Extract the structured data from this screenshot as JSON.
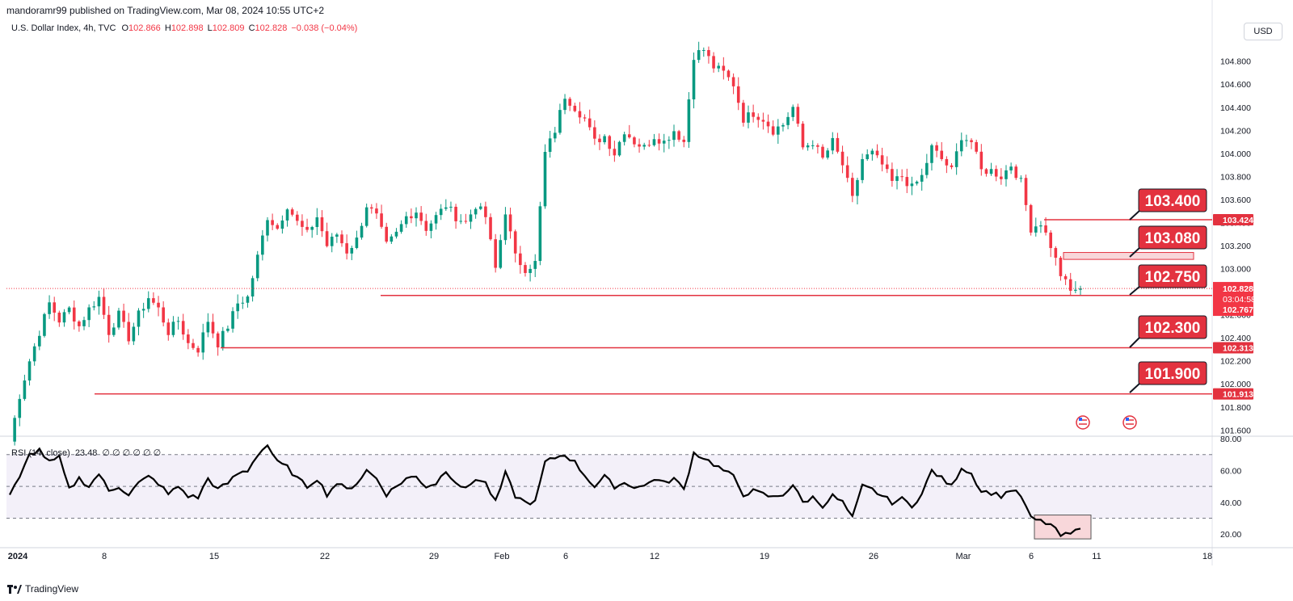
{
  "header": {
    "publish_text": "mandoramr99 published on TradingView.com, Mar 08, 2024 10:55 UTC+2"
  },
  "legend": {
    "symbol": "U.S. Dollar Index, 4h, TVC",
    "open_label": "O",
    "open": "102.866",
    "high_label": "H",
    "high": "102.898",
    "low_label": "L",
    "low": "102.809",
    "close_label": "C",
    "close": "102.828",
    "change": "−0.038 (−0.04%)"
  },
  "currency_button": "USD",
  "rsi_legend": {
    "title": "RSI (14, close)",
    "value": "23.48",
    "placeholders": "∅ ∅ ∅ ∅ ∅ ∅"
  },
  "brand": "TradingView",
  "colors": {
    "up": "#089981",
    "down": "#f23645",
    "level": "#e3323f",
    "rsi_line": "#000000",
    "rsi_band": "#7e57c2"
  },
  "axis_tags": {
    "current_price": "102.828",
    "countdown": "03:04:58",
    "price_low": "102.767"
  },
  "chart_data": [
    {
      "type": "candlestick",
      "title": "U.S. Dollar Index, 4h, TVC",
      "x_ticks": [
        "2024",
        "8",
        "15",
        "22",
        "29",
        "Feb",
        "6",
        "12",
        "19",
        "26",
        "Mar",
        "6",
        "11",
        "18"
      ],
      "y_ticks": [
        101.6,
        101.8,
        102.0,
        102.2,
        102.4,
        102.6,
        102.8,
        103.0,
        103.2,
        103.4,
        103.6,
        103.8,
        104.0,
        104.2,
        104.4,
        104.6,
        104.8
      ],
      "ylim": [
        101.56,
        104.98
      ],
      "current_price": 102.828,
      "approx_close_path": [
        [
          0,
          101.5
        ],
        [
          2,
          101.9
        ],
        [
          4,
          102.2
        ],
        [
          6,
          102.45
        ],
        [
          8,
          102.7
        ],
        [
          10,
          102.55
        ],
        [
          12,
          102.65
        ],
        [
          14,
          102.5
        ],
        [
          16,
          102.65
        ],
        [
          18,
          102.75
        ],
        [
          20,
          102.45
        ],
        [
          22,
          102.6
        ],
        [
          24,
          102.4
        ],
        [
          26,
          102.6
        ],
        [
          28,
          102.75
        ],
        [
          30,
          102.65
        ],
        [
          32,
          102.45
        ],
        [
          34,
          102.55
        ],
        [
          36,
          102.35
        ],
        [
          38,
          102.3
        ],
        [
          40,
          102.55
        ],
        [
          42,
          102.35
        ],
        [
          44,
          102.5
        ],
        [
          46,
          102.7
        ],
        [
          48,
          102.75
        ],
        [
          50,
          103.1
        ],
        [
          52,
          103.45
        ],
        [
          54,
          103.35
        ],
        [
          56,
          103.55
        ],
        [
          58,
          103.4
        ],
        [
          60,
          103.3
        ],
        [
          62,
          103.45
        ],
        [
          64,
          103.2
        ],
        [
          66,
          103.3
        ],
        [
          68,
          103.15
        ],
        [
          70,
          103.25
        ],
        [
          72,
          103.55
        ],
        [
          74,
          103.45
        ],
        [
          76,
          103.2
        ],
        [
          78,
          103.3
        ],
        [
          80,
          103.45
        ],
        [
          82,
          103.5
        ],
        [
          84,
          103.35
        ],
        [
          86,
          103.45
        ],
        [
          88,
          103.55
        ],
        [
          90,
          103.45
        ],
        [
          92,
          103.4
        ],
        [
          94,
          103.55
        ],
        [
          96,
          103.45
        ],
        [
          98,
          103.0
        ],
        [
          100,
          103.5
        ],
        [
          102,
          103.1
        ],
        [
          104,
          103.0
        ],
        [
          106,
          103.05
        ],
        [
          108,
          104.0
        ],
        [
          110,
          104.2
        ],
        [
          112,
          104.5
        ],
        [
          114,
          104.4
        ],
        [
          116,
          104.3
        ],
        [
          118,
          104.1
        ],
        [
          120,
          104.15
        ],
        [
          122,
          104.0
        ],
        [
          124,
          104.2
        ],
        [
          126,
          104.1
        ],
        [
          128,
          104.05
        ],
        [
          130,
          104.15
        ],
        [
          132,
          104.1
        ],
        [
          134,
          104.2
        ],
        [
          136,
          104.1
        ],
        [
          138,
          104.85
        ],
        [
          140,
          104.9
        ],
        [
          142,
          104.75
        ],
        [
          144,
          104.7
        ],
        [
          146,
          104.6
        ],
        [
          148,
          104.3
        ],
        [
          150,
          104.35
        ],
        [
          152,
          104.3
        ],
        [
          154,
          104.2
        ],
        [
          156,
          104.25
        ],
        [
          158,
          104.4
        ],
        [
          160,
          104.05
        ],
        [
          162,
          104.1
        ],
        [
          164,
          103.95
        ],
        [
          166,
          104.1
        ],
        [
          168,
          103.9
        ],
        [
          170,
          103.6
        ],
        [
          172,
          103.95
        ],
        [
          174,
          104.0
        ],
        [
          176,
          103.9
        ],
        [
          178,
          103.75
        ],
        [
          180,
          103.8
        ],
        [
          182,
          103.7
        ],
        [
          184,
          103.8
        ],
        [
          186,
          104.05
        ],
        [
          188,
          103.95
        ],
        [
          190,
          103.85
        ],
        [
          192,
          104.15
        ],
        [
          194,
          104.1
        ],
        [
          196,
          103.85
        ],
        [
          198,
          103.85
        ],
        [
          200,
          103.8
        ],
        [
          202,
          103.9
        ],
        [
          204,
          103.75
        ],
        [
          206,
          103.35
        ],
        [
          208,
          103.4
        ],
        [
          210,
          103.2
        ],
        [
          212,
          102.95
        ],
        [
          214,
          102.8
        ],
        [
          216,
          102.85
        ]
      ]
    },
    {
      "type": "horizontal_levels",
      "levels": [
        {
          "label": "103.400",
          "value": 103.424
        },
        {
          "label": "103.080",
          "zone": [
            103.08,
            103.14
          ]
        },
        {
          "label": "102.750",
          "value": 102.767
        },
        {
          "label": "102.300",
          "value": 102.313
        },
        {
          "label": "101.900",
          "value": 101.913
        }
      ]
    },
    {
      "type": "line",
      "title": "RSI (14, close)",
      "y_ticks": [
        20,
        40,
        60,
        80
      ],
      "ylim": [
        13,
        80
      ],
      "bands": [
        30,
        50,
        70
      ],
      "highlight_zone": [
        17,
        32
      ],
      "approx_values": [
        [
          0,
          45
        ],
        [
          2,
          55
        ],
        [
          4,
          70
        ],
        [
          6,
          73
        ],
        [
          8,
          65
        ],
        [
          10,
          68
        ],
        [
          12,
          48
        ],
        [
          14,
          55
        ],
        [
          16,
          50
        ],
        [
          18,
          58
        ],
        [
          20,
          47
        ],
        [
          22,
          50
        ],
        [
          24,
          45
        ],
        [
          26,
          52
        ],
        [
          28,
          56
        ],
        [
          30,
          52
        ],
        [
          32,
          45
        ],
        [
          34,
          50
        ],
        [
          36,
          44
        ],
        [
          38,
          43
        ],
        [
          40,
          55
        ],
        [
          42,
          48
        ],
        [
          44,
          52
        ],
        [
          46,
          58
        ],
        [
          48,
          60
        ],
        [
          50,
          70
        ],
        [
          52,
          76
        ],
        [
          54,
          65
        ],
        [
          56,
          62
        ],
        [
          58,
          55
        ],
        [
          60,
          50
        ],
        [
          62,
          55
        ],
        [
          64,
          45
        ],
        [
          66,
          52
        ],
        [
          68,
          48
        ],
        [
          70,
          52
        ],
        [
          72,
          60
        ],
        [
          74,
          55
        ],
        [
          76,
          45
        ],
        [
          78,
          50
        ],
        [
          80,
          55
        ],
        [
          82,
          56
        ],
        [
          84,
          50
        ],
        [
          86,
          52
        ],
        [
          88,
          60
        ],
        [
          90,
          53
        ],
        [
          92,
          48
        ],
        [
          94,
          55
        ],
        [
          96,
          52
        ],
        [
          98,
          40
        ],
        [
          100,
          58
        ],
        [
          102,
          44
        ],
        [
          104,
          40
        ],
        [
          106,
          40
        ],
        [
          108,
          65
        ],
        [
          110,
          68
        ],
        [
          112,
          70
        ],
        [
          114,
          65
        ],
        [
          116,
          57
        ],
        [
          118,
          50
        ],
        [
          120,
          56
        ],
        [
          122,
          50
        ],
        [
          124,
          52
        ],
        [
          126,
          50
        ],
        [
          128,
          50
        ],
        [
          130,
          55
        ],
        [
          132,
          52
        ],
        [
          134,
          55
        ],
        [
          136,
          48
        ],
        [
          138,
          71
        ],
        [
          140,
          68
        ],
        [
          142,
          64
        ],
        [
          144,
          60
        ],
        [
          146,
          56
        ],
        [
          148,
          45
        ],
        [
          150,
          47
        ],
        [
          152,
          45
        ],
        [
          154,
          43
        ],
        [
          156,
          45
        ],
        [
          158,
          51
        ],
        [
          160,
          40
        ],
        [
          162,
          43
        ],
        [
          164,
          38
        ],
        [
          166,
          44
        ],
        [
          168,
          40
        ],
        [
          170,
          30
        ],
        [
          172,
          50
        ],
        [
          174,
          48
        ],
        [
          176,
          44
        ],
        [
          178,
          40
        ],
        [
          180,
          42
        ],
        [
          182,
          38
        ],
        [
          184,
          45
        ],
        [
          186,
          60
        ],
        [
          188,
          55
        ],
        [
          190,
          50
        ],
        [
          192,
          62
        ],
        [
          194,
          58
        ],
        [
          196,
          47
        ],
        [
          198,
          46
        ],
        [
          200,
          44
        ],
        [
          202,
          48
        ],
        [
          204,
          44
        ],
        [
          206,
          30
        ],
        [
          208,
          28
        ],
        [
          210,
          26
        ],
        [
          212,
          19
        ],
        [
          214,
          20
        ],
        [
          216,
          23.48
        ]
      ]
    }
  ]
}
